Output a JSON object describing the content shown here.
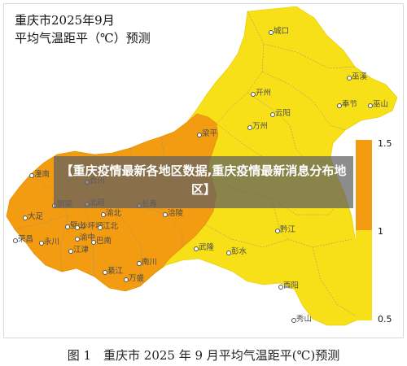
{
  "title": {
    "line1": "重庆市2025年9月",
    "line2": "平均气温距平（℃）预测"
  },
  "legend": {
    "high_label": "1.5",
    "mid_label": "1",
    "low_label": "0.5",
    "colors": {
      "high": "#f39c12",
      "low": "#f7e017"
    }
  },
  "places": {
    "chengkou": "城口",
    "wuxi": "巫溪",
    "kaizhou": "开州",
    "yunyang": "云阳",
    "fengjie": "奉节",
    "wushan": "巫山",
    "wanzhou": "万州",
    "liangping": "梁平",
    "tongnan": "潼南",
    "hechuan": "合川",
    "tongliang": "铜梁",
    "bishan": "璧山",
    "beibei": "北碚",
    "changshou": "长寿",
    "fuling": "涪陵",
    "yubei": "渝北",
    "dazu": "大足",
    "rongchang": "荣昌",
    "yongchuan": "永川",
    "shapingba": "沙坪坝",
    "jiangbei": "江北",
    "yuzhong": "渝中",
    "banan": "巴南",
    "jiangjin": "江津",
    "qijiang": "綦江",
    "wansheng": "万盛",
    "nanchuan": "南川",
    "wulong": "武隆",
    "pengshui": "彭水",
    "qianjiang": "黔江",
    "youyang": "酉阳",
    "xiushan": "秀山"
  },
  "banner": {
    "text": "【重庆疫情最新各地区数据,重庆疫情最新消息分布地区】"
  },
  "caption": "图 1　重庆市 2025 年 9 月平均气温距平(℃)预测"
}
